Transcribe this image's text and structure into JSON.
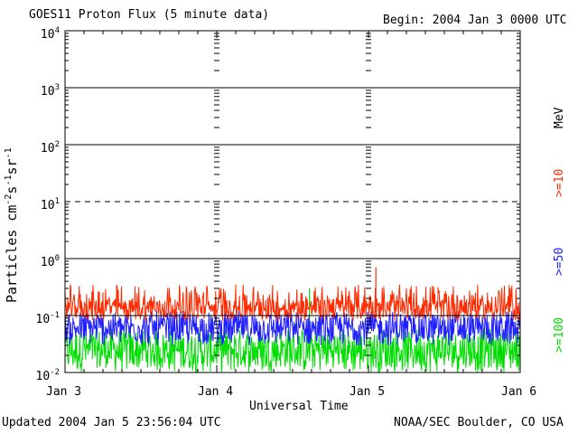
{
  "header": {
    "title": "GOES11 Proton Flux (5 minute data)",
    "begin": "Begin: 2004 Jan 3 0000 UTC"
  },
  "footer": {
    "updated": "Updated 2004 Jan  5 23:56:04 UTC",
    "credit": "NOAA/SEC Boulder, CO USA"
  },
  "chart_data": {
    "type": "line",
    "title": "GOES11 Proton Flux (5 minute data)",
    "xlabel": "Universal Time",
    "ylabel": "Particles cm-2s-1sr-1",
    "yscale": "log",
    "ylim": [
      0.01,
      10000
    ],
    "yticks": [
      {
        "base": "10",
        "exp": "-2",
        "value": 0.01
      },
      {
        "base": "10",
        "exp": "-1",
        "value": 0.1
      },
      {
        "base": "10",
        "exp": "0",
        "value": 1
      },
      {
        "base": "10",
        "exp": "1",
        "value": 10
      },
      {
        "base": "10",
        "exp": "2",
        "value": 100
      },
      {
        "base": "10",
        "exp": "3",
        "value": 1000
      },
      {
        "base": "10",
        "exp": "4",
        "value": 10000
      }
    ],
    "xlim": [
      "2004-01-03",
      "2004-01-06"
    ],
    "xticks": [
      {
        "label": "Jan 3",
        "date": "2004-01-03"
      },
      {
        "label": "Jan 4",
        "date": "2004-01-04"
      },
      {
        "label": "Jan 5",
        "date": "2004-01-05"
      },
      {
        "label": "Jan 6",
        "date": "2004-01-06"
      }
    ],
    "legend_unit": "MeV",
    "series": [
      {
        "name": ">=10",
        "color": "#ff2a00",
        "typical": 0.13,
        "low": 0.08,
        "high": 0.35,
        "spikes": [
          {
            "date": "2004-01-05 01:10",
            "value": 0.7
          }
        ]
      },
      {
        "name": ">=50",
        "color": "#2020ff",
        "typical": 0.06,
        "low": 0.03,
        "high": 0.12
      },
      {
        "name": ">=100",
        "color": "#00dd00",
        "typical": 0.025,
        "low": 0.01,
        "high": 0.06,
        "spikes": [
          {
            "date": "2004-01-04 14:40",
            "value": 0.3
          }
        ]
      }
    ],
    "threshold_lines": [
      {
        "value": 10,
        "style": "dashed"
      },
      {
        "value": 0.1,
        "style": "solid"
      }
    ],
    "grid": "horizontal lines at each decade, tick columns at day boundaries"
  }
}
